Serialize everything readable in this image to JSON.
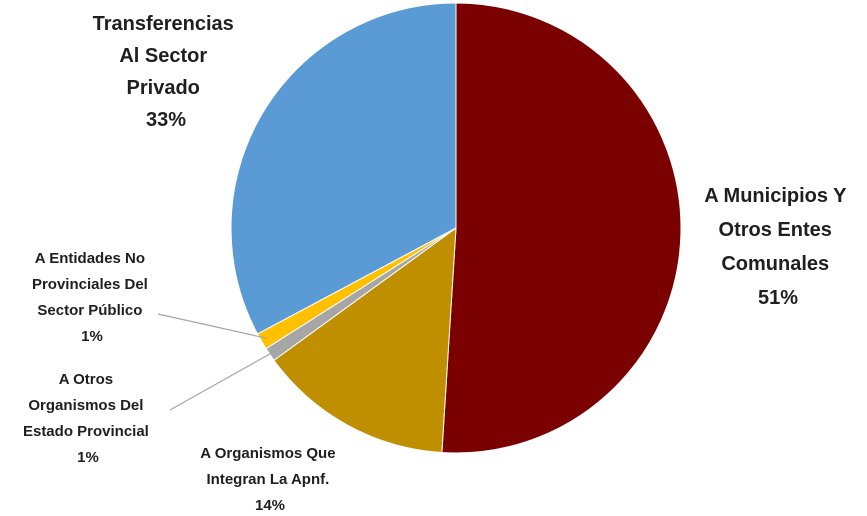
{
  "chart_data": {
    "type": "pie",
    "title": "",
    "slices": [
      {
        "label_lines": [
          "A Municipios Y",
          "Otros Entes",
          "Comunales"
        ],
        "percent_label": "51%",
        "value": 51,
        "color": "#7b0000"
      },
      {
        "label_lines": [
          "A Organismos Que",
          "Integran La Apnf."
        ],
        "percent_label": "14%",
        "value": 14,
        "color": "#bf8f00"
      },
      {
        "label_lines": [
          "A Otros",
          "Organismos Del",
          "Estado Provincial"
        ],
        "percent_label": "1%",
        "value": 1,
        "color": "#a6a6a6"
      },
      {
        "label_lines": [
          "A Entidades No",
          "Provinciales Del",
          "Sector Público"
        ],
        "percent_label": "1%",
        "value": 1.2,
        "color": "#ffc000"
      },
      {
        "label_lines": [
          "Transferencias",
          "Al Sector",
          "Privado"
        ],
        "percent_label": "33%",
        "value": 32.8,
        "color": "#5b9bd5"
      }
    ],
    "start_angle": "12 o'clock",
    "direction": "clockwise",
    "legend": "none"
  }
}
